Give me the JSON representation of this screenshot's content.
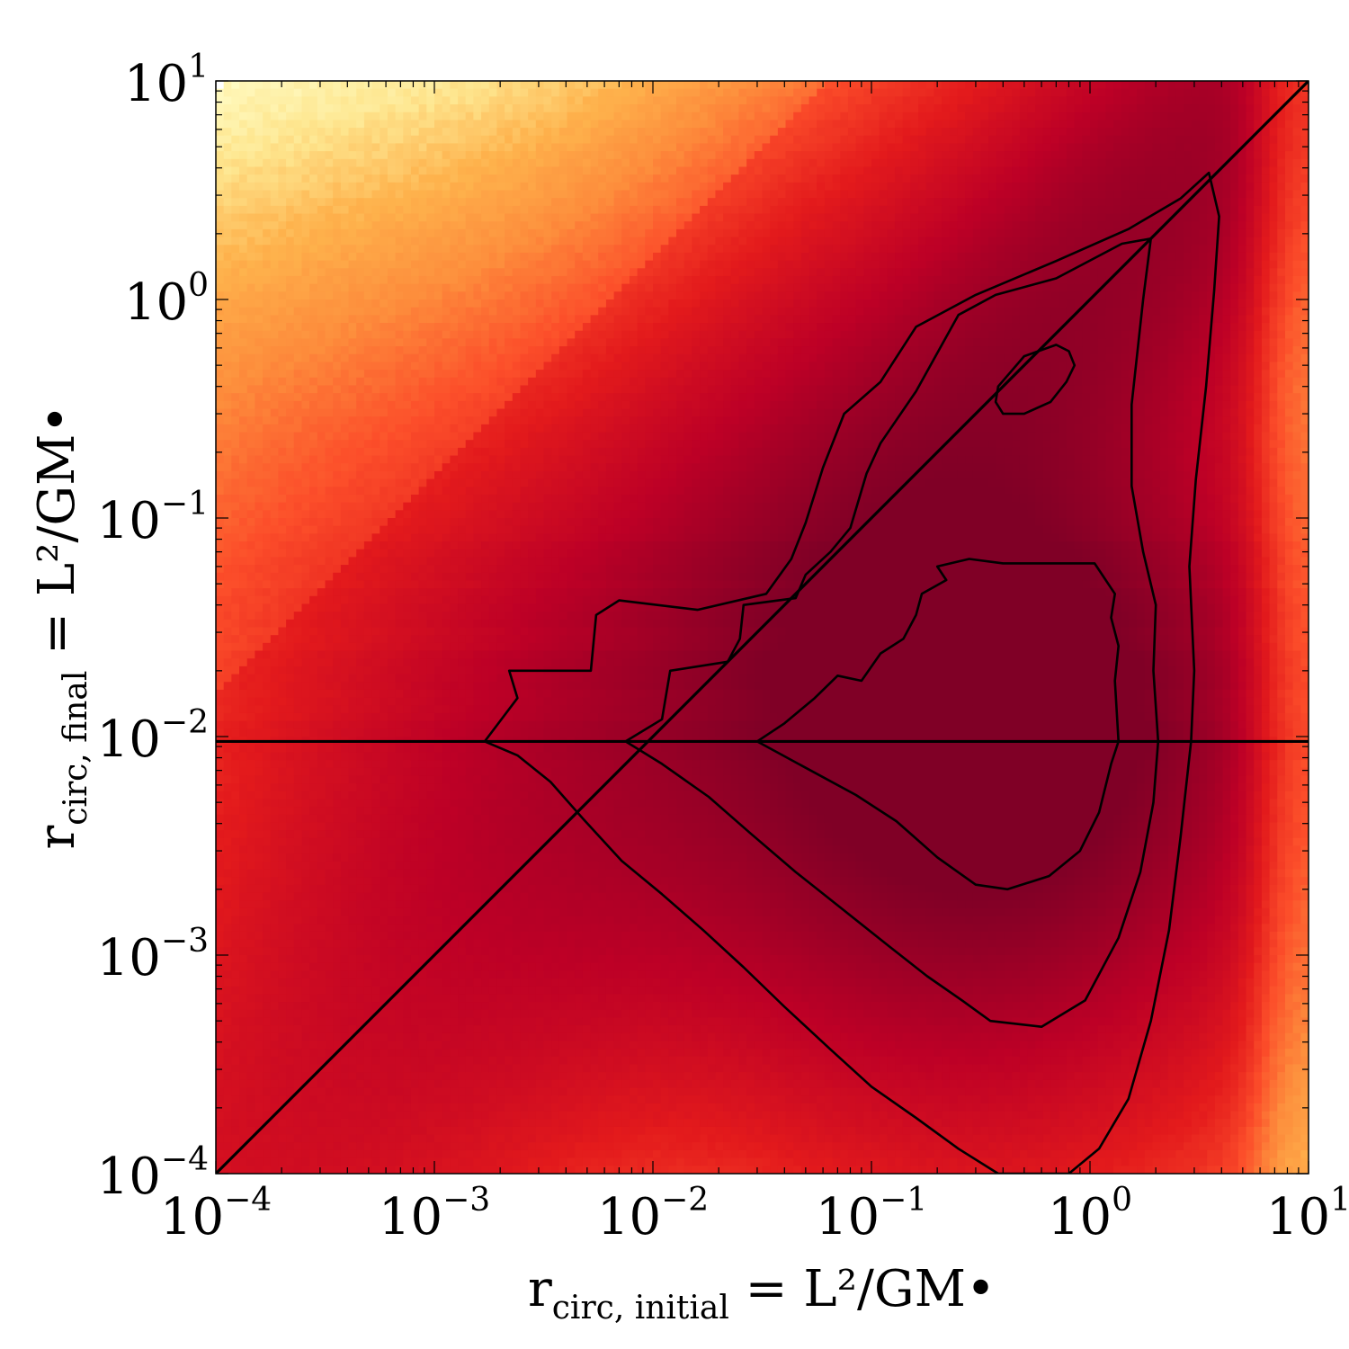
{
  "chart_data": {
    "type": "heatmap",
    "title": "",
    "xscale": "log",
    "yscale": "log",
    "xlim": [
      0.0001,
      10
    ],
    "ylim": [
      0.0001,
      10
    ],
    "x_ticks": [
      {
        "value": 0.0001,
        "base": "10",
        "exp": "−4"
      },
      {
        "value": 0.001,
        "base": "10",
        "exp": "−3"
      },
      {
        "value": 0.01,
        "base": "10",
        "exp": "−2"
      },
      {
        "value": 0.1,
        "base": "10",
        "exp": "−1"
      },
      {
        "value": 1,
        "base": "10",
        "exp": "0"
      },
      {
        "value": 10,
        "base": "10",
        "exp": "1"
      }
    ],
    "y_ticks": [
      {
        "value": 0.0001,
        "base": "10",
        "exp": "−4"
      },
      {
        "value": 0.001,
        "base": "10",
        "exp": "−3"
      },
      {
        "value": 0.01,
        "base": "10",
        "exp": "−2"
      },
      {
        "value": 0.1,
        "base": "10",
        "exp": "−1"
      },
      {
        "value": 1,
        "base": "10",
        "exp": "0"
      },
      {
        "value": 10,
        "base": "10",
        "exp": "1"
      }
    ],
    "xlabel": {
      "main": "r",
      "sub": "circ, initial",
      "rest": " = L²/GM•"
    },
    "ylabel": {
      "main": "r",
      "sub": "circ, final",
      "rest": " = L²/GM•"
    },
    "colormap": "YlOrRd",
    "colormap_stops": [
      "#ffffcc",
      "#fee68f",
      "#feb24c",
      "#fd8d3c",
      "#fc4e2a",
      "#e31a1c",
      "#bd0026",
      "#800026"
    ],
    "density_peak": {
      "x": 0.35,
      "y": 0.011
    },
    "reference_lines": [
      {
        "kind": "diagonal",
        "description_source": "y = x",
        "from": [
          0.0001,
          0.0001
        ],
        "to": [
          10,
          10
        ]
      },
      {
        "kind": "horizontal",
        "y": 0.0095
      }
    ],
    "contours": [
      {
        "level": "outer",
        "points": [
          [
            0.0017,
            0.0095
          ],
          [
            0.0024,
            0.0082
          ],
          [
            0.0034,
            0.0062
          ],
          [
            0.0048,
            0.0042
          ],
          [
            0.0072,
            0.0027
          ],
          [
            0.011,
            0.0019
          ],
          [
            0.017,
            0.0013
          ],
          [
            0.026,
            0.00088
          ],
          [
            0.04,
            0.00058
          ],
          [
            0.065,
            0.00037
          ],
          [
            0.1,
            0.00025
          ],
          [
            0.16,
            0.00018
          ],
          [
            0.25,
            0.00013
          ],
          [
            0.38,
            0.0001
          ],
          [
            0.55,
            0.0001
          ],
          [
            0.8,
            0.0001
          ],
          [
            1.1,
            0.00013
          ],
          [
            1.5,
            0.00022
          ],
          [
            1.9,
            0.0005
          ],
          [
            2.3,
            0.0013
          ],
          [
            2.6,
            0.0035
          ],
          [
            2.9,
            0.0095
          ],
          [
            3.0,
            0.02
          ],
          [
            2.85,
            0.06
          ],
          [
            3.05,
            0.15
          ],
          [
            3.4,
            0.4
          ],
          [
            3.7,
            1.1
          ],
          [
            3.9,
            2.4
          ],
          [
            3.5,
            3.8
          ],
          [
            2.6,
            2.9
          ],
          [
            1.5,
            2.1
          ],
          [
            0.7,
            1.5
          ],
          [
            0.3,
            1.05
          ],
          [
            0.16,
            0.75
          ],
          [
            0.11,
            0.42
          ],
          [
            0.075,
            0.3
          ],
          [
            0.06,
            0.17
          ],
          [
            0.05,
            0.095
          ],
          [
            0.043,
            0.065
          ],
          [
            0.033,
            0.045
          ],
          [
            0.016,
            0.038
          ],
          [
            0.007,
            0.042
          ],
          [
            0.0055,
            0.036
          ],
          [
            0.0052,
            0.02
          ],
          [
            0.0035,
            0.02
          ],
          [
            0.0022,
            0.02
          ],
          [
            0.0024,
            0.015
          ],
          [
            0.0017,
            0.0095
          ]
        ]
      },
      {
        "level": "middle",
        "points": [
          [
            0.0075,
            0.0095
          ],
          [
            0.011,
            0.0075
          ],
          [
            0.018,
            0.0053
          ],
          [
            0.028,
            0.0036
          ],
          [
            0.045,
            0.0024
          ],
          [
            0.075,
            0.0016
          ],
          [
            0.12,
            0.0011
          ],
          [
            0.18,
            0.0008
          ],
          [
            0.26,
            0.00062
          ],
          [
            0.35,
            0.0005
          ],
          [
            0.6,
            0.00047
          ],
          [
            0.95,
            0.00062
          ],
          [
            1.35,
            0.0012
          ],
          [
            1.7,
            0.0024
          ],
          [
            1.95,
            0.005
          ],
          [
            2.05,
            0.0095
          ],
          [
            1.95,
            0.02
          ],
          [
            2.0,
            0.04
          ],
          [
            1.75,
            0.07
          ],
          [
            1.55,
            0.14
          ],
          [
            1.55,
            0.33
          ],
          [
            1.75,
            1.0
          ],
          [
            1.9,
            1.9
          ],
          [
            1.4,
            1.8
          ],
          [
            0.7,
            1.25
          ],
          [
            0.37,
            1.05
          ],
          [
            0.25,
            0.85
          ],
          [
            0.16,
            0.38
          ],
          [
            0.11,
            0.22
          ],
          [
            0.095,
            0.16
          ],
          [
            0.08,
            0.09
          ],
          [
            0.065,
            0.07
          ],
          [
            0.05,
            0.055
          ],
          [
            0.045,
            0.043
          ],
          [
            0.026,
            0.04
          ],
          [
            0.025,
            0.028
          ],
          [
            0.022,
            0.022
          ],
          [
            0.012,
            0.02
          ],
          [
            0.011,
            0.012
          ],
          [
            0.0075,
            0.0095
          ]
        ]
      },
      {
        "level": "inner-low",
        "points": [
          [
            0.03,
            0.0095
          ],
          [
            0.05,
            0.0072
          ],
          [
            0.085,
            0.0054
          ],
          [
            0.13,
            0.0041
          ],
          [
            0.2,
            0.0028
          ],
          [
            0.3,
            0.0021
          ],
          [
            0.42,
            0.002
          ],
          [
            0.65,
            0.0023
          ],
          [
            0.9,
            0.003
          ],
          [
            1.1,
            0.0045
          ],
          [
            1.25,
            0.0075
          ],
          [
            1.35,
            0.0095
          ],
          [
            1.3,
            0.018
          ],
          [
            1.35,
            0.026
          ],
          [
            1.25,
            0.035
          ],
          [
            1.3,
            0.045
          ],
          [
            1.05,
            0.062
          ],
          [
            0.7,
            0.062
          ],
          [
            0.4,
            0.062
          ],
          [
            0.28,
            0.065
          ],
          [
            0.2,
            0.06
          ],
          [
            0.22,
            0.052
          ],
          [
            0.17,
            0.045
          ],
          [
            0.16,
            0.036
          ],
          [
            0.14,
            0.028
          ],
          [
            0.11,
            0.024
          ],
          [
            0.09,
            0.018
          ],
          [
            0.07,
            0.019
          ],
          [
            0.055,
            0.015
          ],
          [
            0.04,
            0.0115
          ],
          [
            0.03,
            0.0095
          ]
        ]
      },
      {
        "level": "inner-high",
        "points": [
          [
            0.38,
            0.4
          ],
          [
            0.5,
            0.55
          ],
          [
            0.7,
            0.62
          ],
          [
            0.8,
            0.58
          ],
          [
            0.85,
            0.5
          ],
          [
            0.78,
            0.42
          ],
          [
            0.66,
            0.34
          ],
          [
            0.5,
            0.3
          ],
          [
            0.4,
            0.3
          ],
          [
            0.37,
            0.34
          ],
          [
            0.38,
            0.4
          ]
        ]
      }
    ]
  }
}
